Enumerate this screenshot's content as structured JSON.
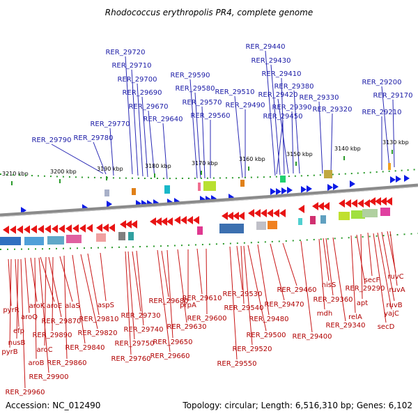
{
  "title": "Rhodococcus erythropolis PR4, complete genome",
  "footer": {
    "accession": "Accession: NC_012490",
    "topology": "Topology: circular; Length: 6,516,310 bp; Genes: 6,102"
  },
  "ticks": [
    "3210 kbp",
    "3200 kbp",
    "3190 kbp",
    "3180 kbp",
    "3170 kbp",
    "3160 kbp",
    "3150 kbp",
    "3140 kbp",
    "3130 kbp"
  ],
  "top_labels": [
    "RER_29720",
    "RER_29710",
    "RER_29700",
    "RER_29690",
    "RER_29670",
    "RER_29640",
    "RER_29770",
    "RER_29780",
    "RER_29790",
    "RER_29590",
    "RER_29580",
    "RER_29570",
    "RER_29560",
    "RER_29510",
    "RER_29490",
    "RER_29440",
    "RER_29430",
    "RER_29410",
    "RER_29380",
    "RER_29420",
    "RER_29390",
    "RER_29450",
    "RER_29330",
    "RER_29320",
    "RER_29200",
    "RER_29170",
    "RER_29210"
  ],
  "bottom_labels": [
    "pyrR",
    "pyrB",
    "efp",
    "nusB",
    "aroQ",
    "aroK",
    "aroE",
    "alaS",
    "aroB",
    "aroC",
    "RER_29870",
    "RER_29890",
    "RER_29900",
    "RER_29960",
    "RER_29860",
    "RER_29840",
    "RER_29820",
    "RER_29810",
    "aspS",
    "RER_29680",
    "RER_29730",
    "RER_29740",
    "RER_29750",
    "RER_29760",
    "RER_29650",
    "RER_29660",
    "RER_29630",
    "prpA",
    "RER_29610",
    "RER_29600",
    "RER_29530",
    "RER_29540",
    "RER_29550",
    "RER_29520",
    "RER_29500",
    "RER_29480",
    "RER_29470",
    "RER_29460",
    "RER_29400",
    "hisS",
    "mdh",
    "RER_29360",
    "RER_29340",
    "RER_29290",
    "apt",
    "relA",
    "secF",
    "ruvC",
    "ruvA",
    "ruvB",
    "yajC",
    "secD"
  ],
  "colors": {
    "forward_gene": "#0c1be6",
    "reverse_gene": "#e81414",
    "top_label": "#1a1aa6",
    "bottom_label": "#b00000",
    "backbone": "#8a8a8a",
    "tick": "#2a9a2a"
  }
}
